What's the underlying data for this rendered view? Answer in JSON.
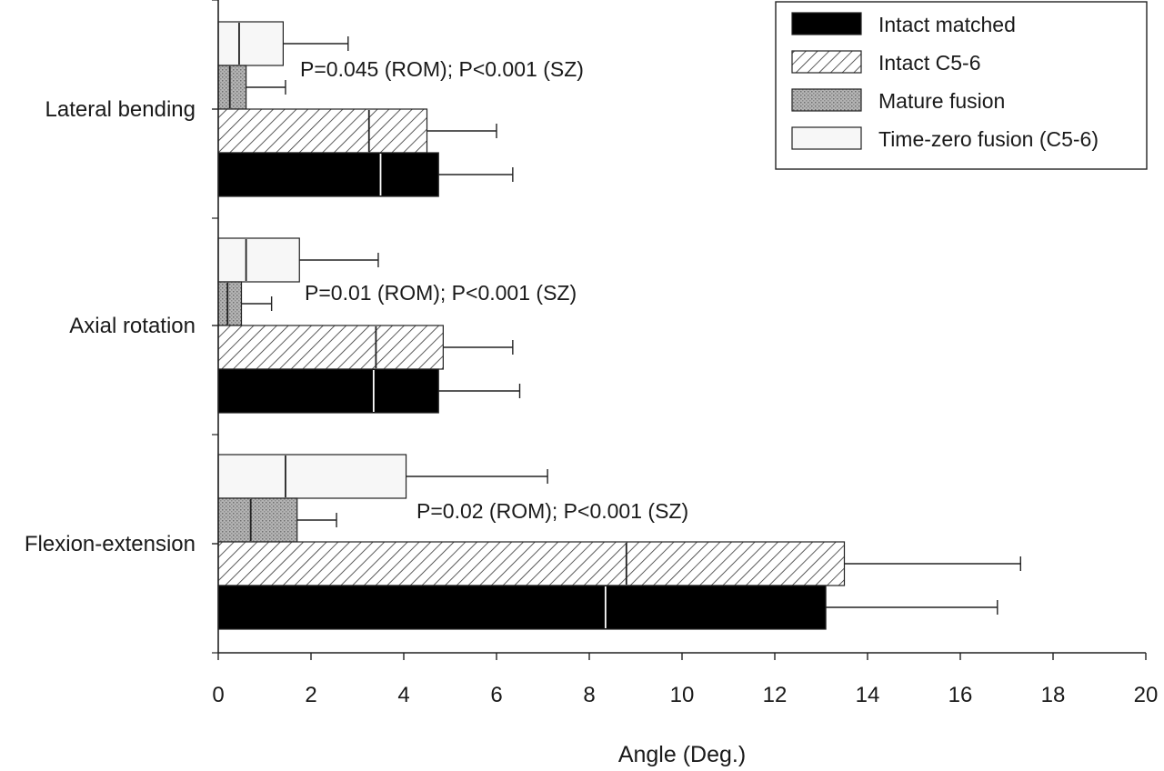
{
  "chart_data": {
    "type": "bar",
    "orientation": "horizontal",
    "xlabel": "Angle (Deg.)",
    "xlim": [
      0,
      20
    ],
    "xticks": [
      0,
      2,
      4,
      6,
      8,
      10,
      12,
      14,
      16,
      18,
      20
    ],
    "categories": [
      "Lateral bending",
      "Axial rotation",
      "Flexion-extension"
    ],
    "series": [
      {
        "name": "Intact matched",
        "pattern": "solid-black",
        "values": [
          4.75,
          4.75,
          13.1
        ],
        "sz": [
          3.5,
          3.35,
          8.35
        ],
        "error": [
          1.6,
          1.75,
          3.7
        ]
      },
      {
        "name": "Intact C5-6",
        "pattern": "diagonal-hatch",
        "values": [
          4.5,
          4.85,
          13.5
        ],
        "sz": [
          3.25,
          3.4,
          8.8
        ],
        "error": [
          1.5,
          1.5,
          3.8
        ]
      },
      {
        "name": "Mature fusion",
        "pattern": "gray-stipple",
        "values": [
          0.6,
          0.5,
          1.7
        ],
        "sz": [
          0.25,
          0.2,
          0.7
        ],
        "error": [
          0.85,
          0.65,
          0.85
        ]
      },
      {
        "name": "Time-zero fusion (C5-6)",
        "pattern": "light-gray",
        "values": [
          1.4,
          1.75,
          4.05
        ],
        "sz": [
          0.45,
          0.6,
          1.45
        ],
        "error": [
          1.4,
          1.7,
          3.05
        ]
      }
    ],
    "annotations": [
      "P=0.045 (ROM); P<0.001 (SZ)",
      "P=0.01 (ROM); P<0.001 (SZ)",
      "P=0.02 (ROM); P<0.001 (SZ)"
    ],
    "legend_position": "top-right",
    "grid": false,
    "colors": {
      "black": "#000000",
      "hatch": "#333333",
      "stipple": "#9a9a9a",
      "light": "#f7f7f7"
    }
  }
}
